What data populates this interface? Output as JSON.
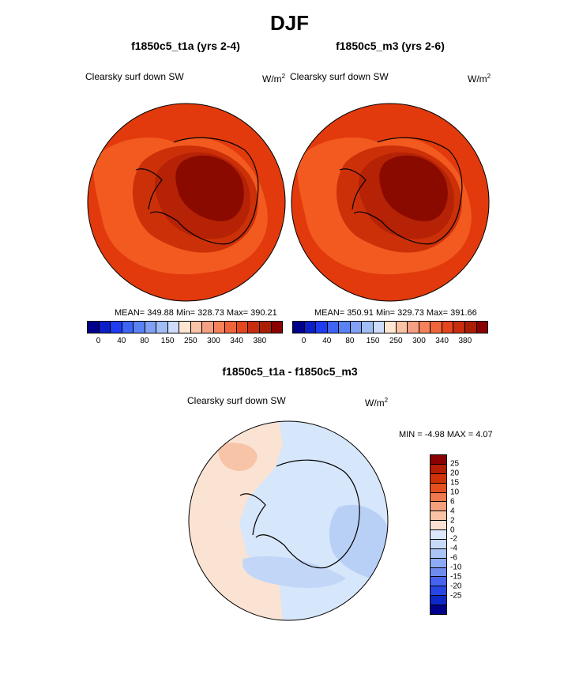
{
  "figure": {
    "title": "DJF"
  },
  "panels": [
    {
      "title": "f1850c5_t1a (yrs 2-4)",
      "field_label": "Clearsky surf down SW",
      "units": "W/m",
      "units_exp": "2",
      "stats": "MEAN= 349.88  Min= 328.73  Max= 390.21"
    },
    {
      "title": "f1850c5_m3 (yrs 2-6)",
      "field_label": "Clearsky surf down SW",
      "units": "W/m",
      "units_exp": "2",
      "stats": "MEAN= 350.91  Min= 329.73  Max= 391.66"
    }
  ],
  "abs_colorbar": {
    "colors": [
      "#00008b",
      "#0b1ec8",
      "#1e3cf0",
      "#3c64f5",
      "#5a82f5",
      "#82a0f5",
      "#a0bef5",
      "#cddcfa",
      "#ffe6d2",
      "#fac3a5",
      "#f5a082",
      "#f5825a",
      "#f0643c",
      "#e6461e",
      "#c82d0f",
      "#aa1e05",
      "#8b0000"
    ],
    "ticks": [
      "0",
      "40",
      "80",
      "150",
      "250",
      "300",
      "340",
      "380"
    ]
  },
  "diff_panel": {
    "title": "f1850c5_t1a - f1850c5_m3",
    "field_label": "Clearsky surf down SW",
    "units": "W/m",
    "units_exp": "2",
    "stats": "MIN =  -4.98 MAX =   4.07"
  },
  "diff_colorbar": {
    "colors": [
      "#8b0000",
      "#b41e05",
      "#d2320a",
      "#e6501e",
      "#f07850",
      "#f5a07d",
      "#fac3a5",
      "#fbe1d2",
      "#dce8fa",
      "#c8dafa",
      "#aac4f5",
      "#8caaf5",
      "#6e8cf0",
      "#4664f0",
      "#2846e6",
      "#0f28c8",
      "#00008b"
    ],
    "ticks": [
      "25",
      "20",
      "15",
      "10",
      "6",
      "4",
      "2",
      "0",
      "-2",
      "-4",
      "-6",
      "-10",
      "-15",
      "-20",
      "-25"
    ]
  }
}
